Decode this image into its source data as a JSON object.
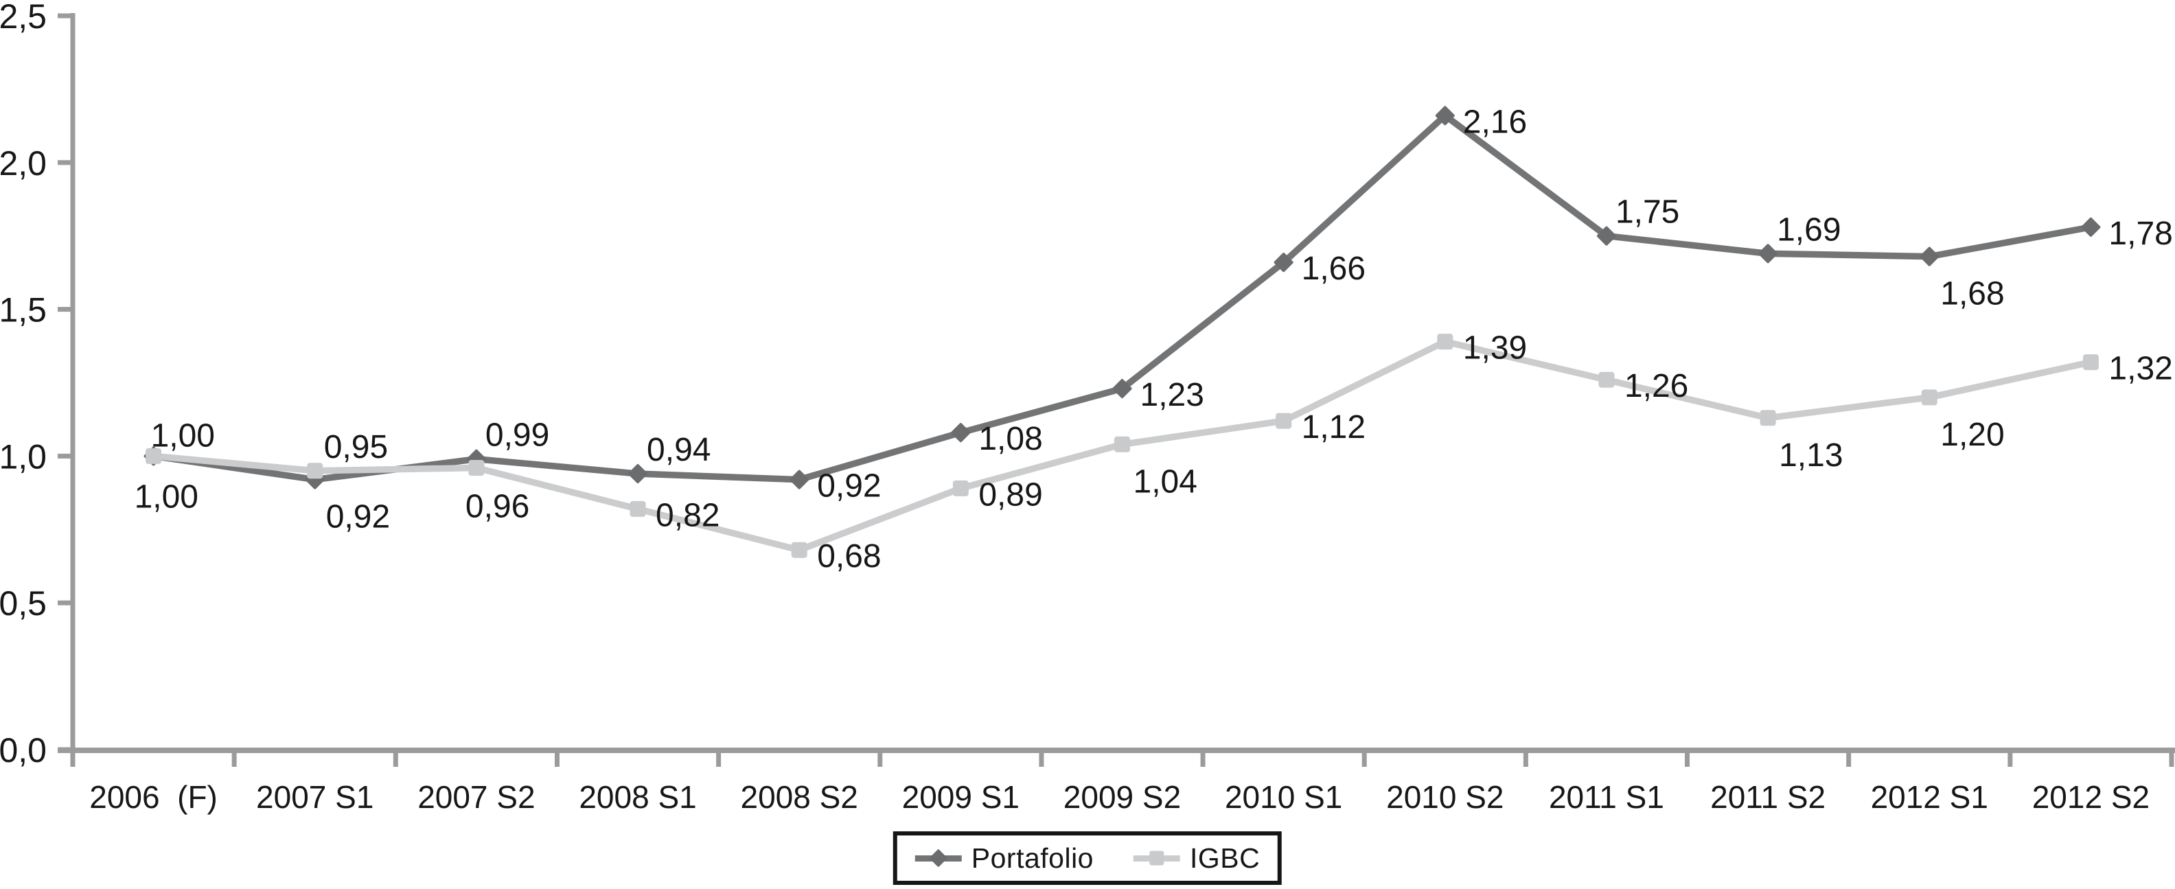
{
  "chart_data": {
    "type": "line",
    "title": "",
    "xlabel": "",
    "ylabel": "",
    "grid": false,
    "categories": [
      "2006  (F)",
      "2007 S1",
      "2007 S2",
      "2008 S1",
      "2008 S2",
      "2009 S1",
      "2009 S2",
      "2010 S1",
      "2010 S2",
      "2011 S1",
      "2011 S2",
      "2012 S1",
      "2012 S2"
    ],
    "y_axis": {
      "min": 0.0,
      "max": 2.5,
      "step": 0.5,
      "tick_labels": [
        "0,0",
        "0,5",
        "1,0",
        "1,5",
        "2,0",
        "2,5"
      ]
    },
    "series": [
      {
        "name": "Portafolio",
        "marker": "diamond",
        "line_color": "#737476",
        "marker_color": "#6b6c6e",
        "values": [
          1.0,
          0.92,
          0.99,
          0.94,
          0.92,
          1.08,
          1.23,
          1.66,
          2.16,
          1.75,
          1.69,
          1.68,
          1.78
        ],
        "labels": [
          "1,00",
          "0,92",
          "0,99",
          "0,94",
          "0,92",
          "1,08",
          "1,23",
          "1,66",
          "2,16",
          "1,75",
          "1,69",
          "1,68",
          "1,78"
        ],
        "label_pos": [
          "above",
          "below-right",
          "above-right",
          "above-right",
          "right",
          "right",
          "right",
          "right",
          "right",
          "above-right",
          "above-right",
          "below-right",
          "right"
        ]
      },
      {
        "name": "IGBC",
        "marker": "square",
        "line_color": "#cbccce",
        "marker_color": "#c9cacc",
        "values": [
          1.0,
          0.95,
          0.96,
          0.82,
          0.68,
          0.89,
          1.04,
          1.12,
          1.39,
          1.26,
          1.13,
          1.2,
          1.32
        ],
        "labels": [
          "1,00",
          "0,95",
          "0,96",
          "0,82",
          "0,68",
          "0,89",
          "1,04",
          "1,12",
          "1,39",
          "1,26",
          "1,13",
          "1,20",
          "1,32"
        ],
        "label_pos": [
          "below",
          "above-right",
          "below-center",
          "right",
          "right",
          "right",
          "below-right",
          "right",
          "right",
          "right",
          "below-right",
          "below-right",
          "right"
        ]
      }
    ],
    "legend": {
      "position": "bottom-center",
      "border_color": "#161616",
      "entries": [
        "Portafolio",
        "IGBC"
      ]
    },
    "colors": {
      "axis": "#9b9b9b",
      "text": "#171717",
      "background": "#ffffff"
    }
  }
}
